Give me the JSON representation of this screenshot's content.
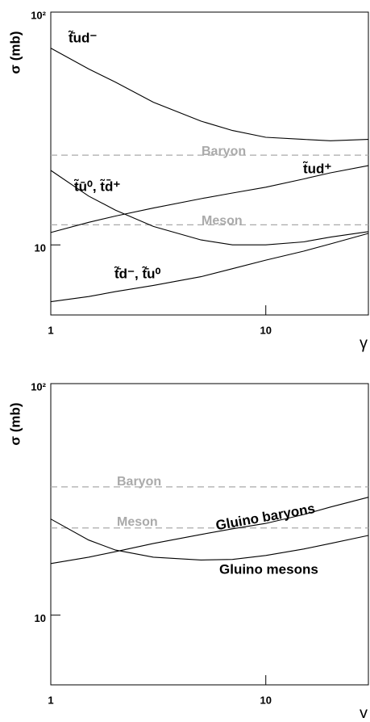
{
  "chart_data": [
    {
      "type": "line",
      "x_label": "γ",
      "y_label": "σ (mb)",
      "log_x": true,
      "log_y": true,
      "xlim": [
        1,
        30
      ],
      "ylim": [
        5,
        100
      ],
      "xticks": [
        1,
        10
      ],
      "yticks": [
        10,
        {
          "value": 100,
          "label": "10²"
        }
      ],
      "x": [
        1,
        1.5,
        2,
        3,
        5,
        7,
        10,
        15,
        20,
        30
      ],
      "series": [
        {
          "name": "t̃̄ud⁻",
          "color": "#000000",
          "values": [
            70,
            57,
            50,
            41,
            34,
            31,
            29,
            28.4,
            28,
            28.4
          ]
        },
        {
          "name": "t̃ud⁺",
          "color": "#000000",
          "values": [
            11.3,
            12.5,
            13.3,
            14.4,
            15.8,
            16.7,
            17.7,
            19.2,
            20.4,
            21.9
          ]
        },
        {
          "name": "t̃ū⁰, t̃d̄⁺",
          "color": "#000000",
          "values": [
            20.9,
            16.2,
            14.1,
            12.0,
            10.5,
            10.0,
            10.0,
            10.3,
            10.8,
            11.4
          ]
        },
        {
          "name": "t̃̄d⁻, t̃̄u⁰",
          "color": "#000000",
          "values": [
            5.7,
            6.0,
            6.3,
            6.7,
            7.3,
            7.9,
            8.6,
            9.4,
            10.1,
            11.2
          ]
        }
      ],
      "reference_lines": [
        {
          "label": "Baryon",
          "value": 24.3,
          "color": "#aaaaaa"
        },
        {
          "label": "Meson",
          "value": 12.2,
          "color": "#aaaaaa"
        }
      ]
    },
    {
      "type": "line",
      "x_label": "γ",
      "y_label": "σ (mb)",
      "log_x": true,
      "log_y": true,
      "xlim": [
        1,
        30
      ],
      "ylim": [
        5,
        100
      ],
      "xticks": [
        1,
        10
      ],
      "yticks": [
        10,
        {
          "value": 100,
          "label": "10²"
        }
      ],
      "x": [
        1,
        1.5,
        2,
        3,
        5,
        7,
        10,
        15,
        20,
        30
      ],
      "series": [
        {
          "name": "Gluino baryons",
          "color": "#000000",
          "values": [
            16.7,
            17.8,
            18.8,
            20.4,
            22.3,
            23.6,
            24.9,
            27.2,
            29.3,
            32.3
          ]
        },
        {
          "name": "Gluino mesons",
          "color": "#000000",
          "values": [
            26,
            21.1,
            19.1,
            17.8,
            17.3,
            17.4,
            18.1,
            19.3,
            20.4,
            22.1
          ]
        }
      ],
      "reference_lines": [
        {
          "label": "Baryon",
          "value": 35.8,
          "color": "#aaaaaa"
        },
        {
          "label": "Meson",
          "value": 23.8,
          "color": "#aaaaaa"
        }
      ]
    }
  ]
}
